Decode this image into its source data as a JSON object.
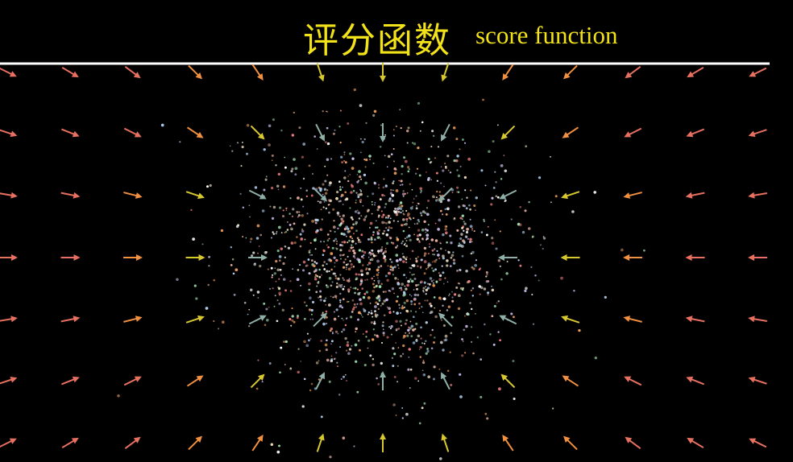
{
  "header": {
    "title_zh": "评分函数",
    "title_en": "score function"
  }
}
